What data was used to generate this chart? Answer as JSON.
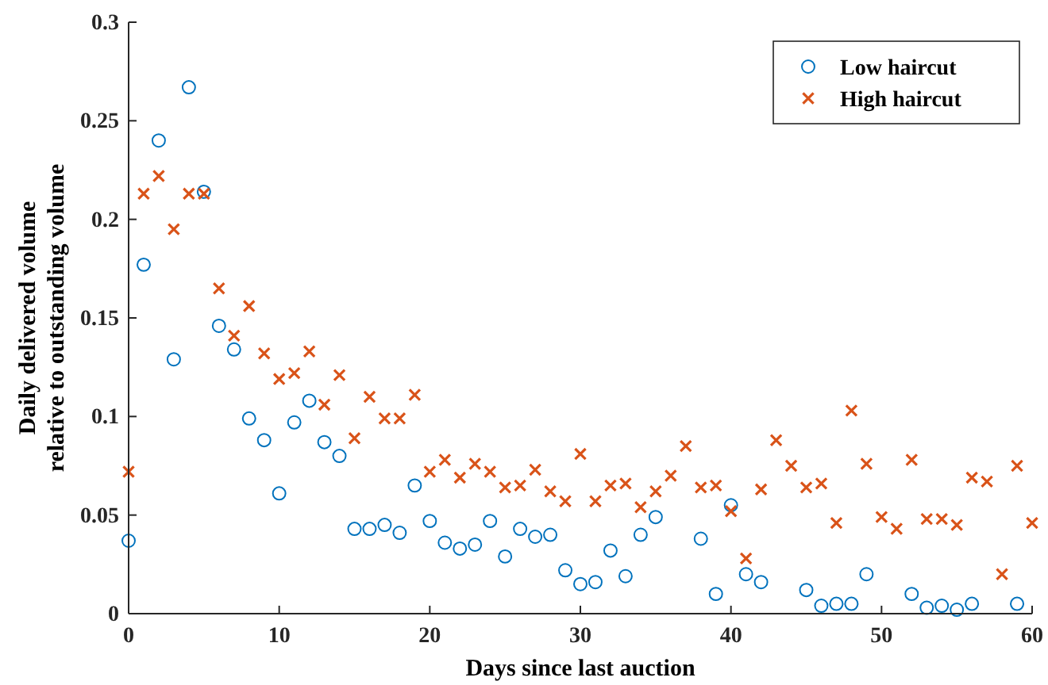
{
  "chart_data": {
    "type": "scatter",
    "xlabel": "Days since last auction",
    "ylabel": "Daily delivered volume\nrelative to outstanding volume",
    "xlim": [
      0,
      60
    ],
    "xticks": [
      0,
      10,
      20,
      30,
      40,
      50,
      60
    ],
    "ylim": [
      0,
      0.3
    ],
    "yticks": [
      0,
      0.05,
      0.1,
      0.15,
      0.2,
      0.25,
      0.3
    ],
    "legend": "top right",
    "grid": false,
    "series": [
      {
        "name": "Low haircut",
        "color": "#0072bd",
        "marker": "circle",
        "x": [
          0,
          1,
          2,
          3,
          4,
          5,
          6,
          7,
          8,
          9,
          10,
          11,
          12,
          13,
          14,
          15,
          16,
          17,
          18,
          19,
          20,
          21,
          22,
          23,
          24,
          25,
          26,
          27,
          28,
          29,
          30,
          31,
          32,
          33,
          34,
          35,
          38,
          39,
          40,
          41,
          42,
          45,
          46,
          47,
          48,
          49,
          52,
          53,
          54,
          55,
          56,
          59
        ],
        "values": [
          0.037,
          0.177,
          0.24,
          0.129,
          0.267,
          0.214,
          0.146,
          0.134,
          0.099,
          0.088,
          0.061,
          0.097,
          0.108,
          0.087,
          0.08,
          0.043,
          0.043,
          0.045,
          0.041,
          0.065,
          0.047,
          0.036,
          0.033,
          0.035,
          0.047,
          0.029,
          0.043,
          0.039,
          0.04,
          0.022,
          0.015,
          0.016,
          0.032,
          0.019,
          0.04,
          0.049,
          0.038,
          0.01,
          0.055,
          0.02,
          0.016,
          0.012,
          0.004,
          0.005,
          0.005,
          0.02,
          0.01,
          0.003,
          0.004,
          0.002,
          0.005,
          0.005
        ]
      },
      {
        "name": "High haircut",
        "color": "#d95319",
        "marker": "cross",
        "x": [
          0,
          1,
          2,
          3,
          4,
          5,
          6,
          7,
          8,
          9,
          10,
          11,
          12,
          13,
          14,
          15,
          16,
          17,
          18,
          19,
          20,
          21,
          22,
          23,
          24,
          25,
          26,
          27,
          28,
          29,
          30,
          31,
          32,
          33,
          34,
          35,
          36,
          37,
          38,
          39,
          40,
          41,
          42,
          43,
          44,
          45,
          46,
          47,
          48,
          49,
          50,
          51,
          52,
          53,
          54,
          55,
          56,
          57,
          58,
          59,
          60
        ],
        "values": [
          0.072,
          0.213,
          0.222,
          0.195,
          0.213,
          0.213,
          0.165,
          0.141,
          0.156,
          0.132,
          0.119,
          0.122,
          0.133,
          0.106,
          0.121,
          0.089,
          0.11,
          0.099,
          0.099,
          0.111,
          0.072,
          0.078,
          0.069,
          0.076,
          0.072,
          0.064,
          0.065,
          0.073,
          0.062,
          0.057,
          0.081,
          0.057,
          0.065,
          0.066,
          0.054,
          0.062,
          0.07,
          0.085,
          0.064,
          0.065,
          0.052,
          0.028,
          0.063,
          0.088,
          0.075,
          0.064,
          0.066,
          0.046,
          0.103,
          0.076,
          0.049,
          0.043,
          0.078,
          0.048,
          0.048,
          0.045,
          0.069,
          0.067,
          0.02,
          0.075,
          0.046
        ]
      }
    ]
  }
}
